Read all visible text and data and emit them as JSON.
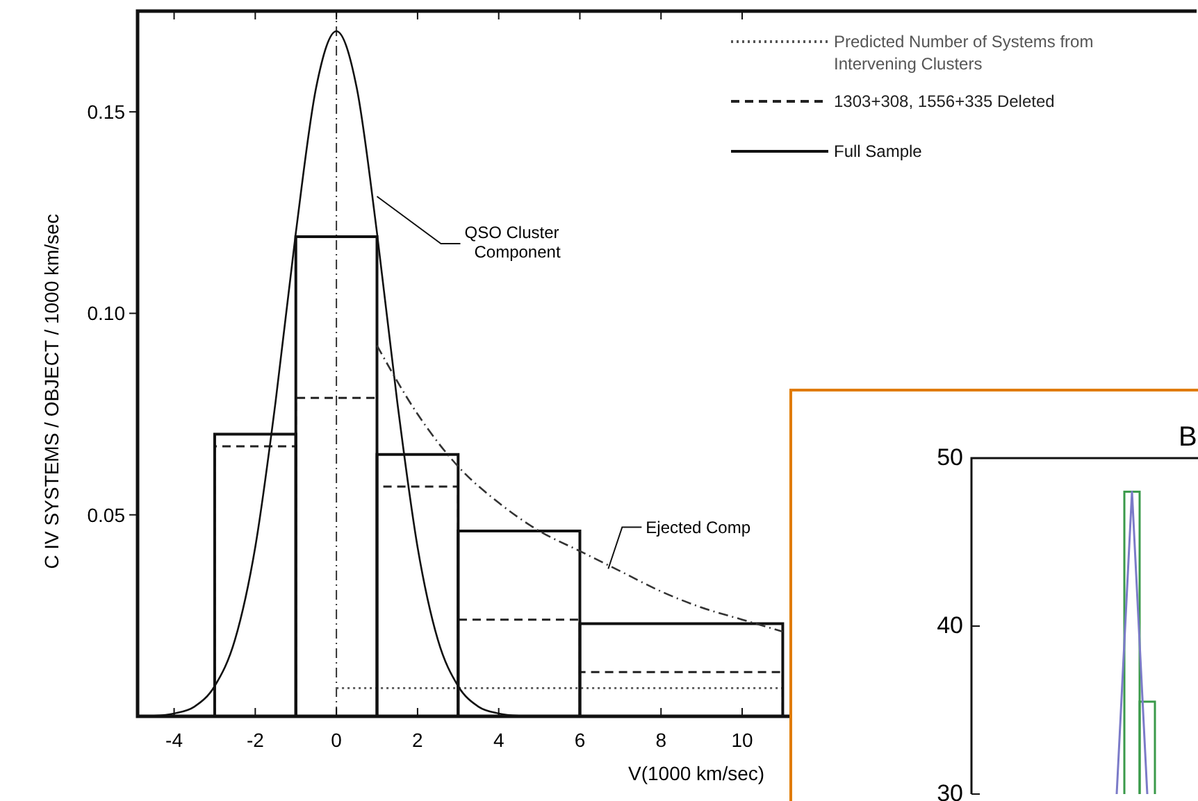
{
  "chart_data": [
    {
      "type": "histogram",
      "xlabel": "V(1000 km/sec)",
      "ylabel": "C IV SYSTEMS / OBJECT / 1000 km/sec",
      "bins": [
        -3,
        -1,
        1,
        3,
        6,
        11
      ],
      "xlim": [
        -4.9,
        21.2
      ],
      "ylim": [
        0,
        0.175
      ],
      "xticks": [
        -4,
        -2,
        0,
        2,
        4,
        6,
        8,
        10
      ],
      "yticks": [
        {
          "value": 0.05,
          "label": "0.05"
        },
        {
          "value": 0.1,
          "label": "0.10"
        },
        {
          "value": 0.15,
          "label": "0.15"
        }
      ],
      "grid": false,
      "legend": "top right",
      "series": [
        {
          "name": "Predicted Number of Systems from Intervening Clusters",
          "type": "line",
          "color": "#555555",
          "line_style": "dotted",
          "x": [
            0,
            11
          ],
          "values": [
            0.007,
            0.007
          ]
        },
        {
          "name": "1303+308, 1556+335 Deleted",
          "type": "histogram",
          "color": "#222222",
          "line_style": "dashed",
          "values": [
            0.067,
            0.079,
            0.057,
            0.024,
            0.011
          ]
        },
        {
          "name": "Full Sample",
          "type": "histogram",
          "color": "#111111",
          "line_style": "solid",
          "values": [
            0.07,
            0.119,
            0.065,
            0.046,
            0.023
          ]
        },
        {
          "type": "line",
          "color": "#111111",
          "line_style": "solid",
          "x": [
            -4.5,
            -4,
            -3.5,
            -3,
            -2.5,
            -2,
            -1.5,
            -1,
            -0.5,
            0,
            0.5,
            1,
            1.5,
            2,
            2.5,
            3,
            3.5,
            4,
            4.5
          ],
          "values": [
            0.0001,
            0.0007,
            0.0024,
            0.0075,
            0.019,
            0.042,
            0.078,
            0.12,
            0.156,
            0.17,
            0.156,
            0.12,
            0.078,
            0.042,
            0.019,
            0.0075,
            0.0024,
            0.0007,
            0.0001
          ]
        },
        {
          "type": "line",
          "color": "#333333",
          "line_style": "dashed",
          "x": [
            1,
            2,
            3,
            4,
            5,
            6,
            7,
            8,
            9,
            10,
            11
          ],
          "values": [
            0.092,
            0.075,
            0.062,
            0.053,
            0.046,
            0.041,
            0.036,
            0.031,
            0.027,
            0.024,
            0.021
          ]
        }
      ],
      "ref_lines": [
        {
          "axis": "x",
          "value": 0,
          "color": "#333333",
          "line_style": "dashed"
        }
      ],
      "annotations": [
        {
          "text": "QSO Cluster Component",
          "x": 1,
          "y": 0.129
        },
        {
          "text": "Ejected Comp",
          "x": 6.7,
          "y": 0.0366
        }
      ]
    },
    {
      "type": "bar",
      "title": "B",
      "categories": [
        null,
        null,
        null,
        null,
        null,
        null,
        null,
        null,
        null,
        null,
        null,
        null,
        null,
        null,
        null
      ],
      "ylim": [
        30,
        50
      ],
      "yticks": [
        30,
        40,
        50
      ],
      "tick_labels": "y",
      "grid": false,
      "series": [
        {
          "type": "bar",
          "color": "#3a9a4a",
          "values": [
            null,
            null,
            null,
            null,
            null,
            null,
            null,
            null,
            null,
            null,
            48,
            35.5,
            null,
            null,
            null
          ]
        },
        {
          "type": "line",
          "color": "#7b7bc8",
          "values": [
            null,
            null,
            null,
            null,
            null,
            null,
            null,
            null,
            null,
            30,
            48,
            30,
            null,
            null,
            null
          ]
        }
      ]
    }
  ]
}
